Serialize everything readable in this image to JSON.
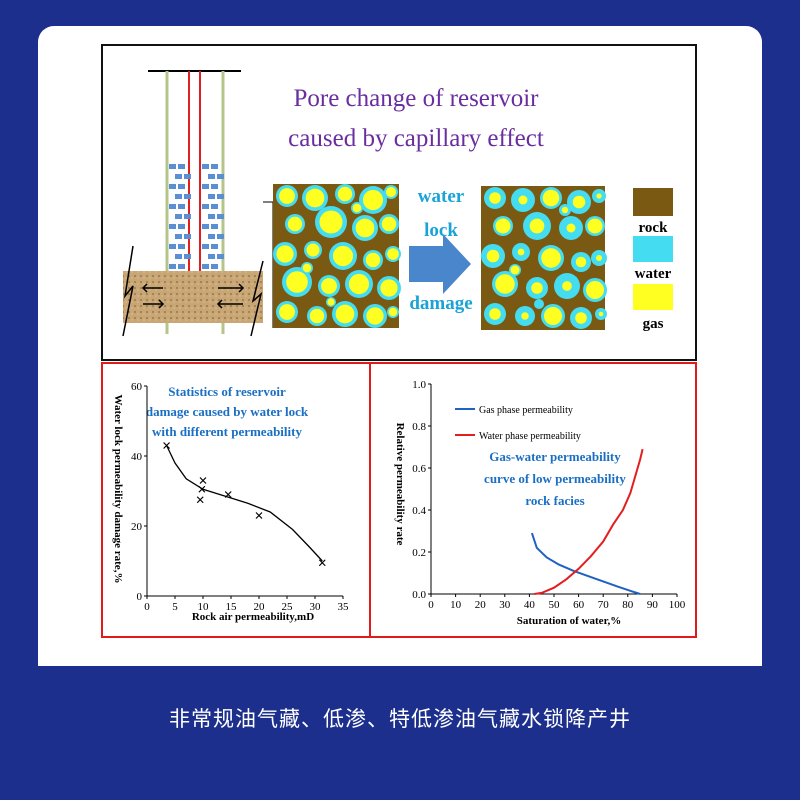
{
  "top": {
    "title_line1": "Pore change of reservoir",
    "title_line2": "caused by capillary effect",
    "arrow_label": [
      "water",
      "lock",
      "damage"
    ],
    "legend": [
      {
        "label": "rock",
        "color": "#7a5a12"
      },
      {
        "label": "water",
        "color": "#44dcf0"
      },
      {
        "label": "gas",
        "color": "#ffff22"
      }
    ]
  },
  "chart_data": [
    {
      "type": "scatter",
      "title": "Statistics of reservoir damage caused by water lock with different permeability",
      "title_lines": [
        "Statistics of reservoir",
        "damage caused by water lock",
        "with different permeability"
      ],
      "xlabel": "Rock air permeability,mD",
      "ylabel": "Water lock permeability damage rate,%",
      "xlim": [
        0,
        35
      ],
      "ylim": [
        0,
        60
      ],
      "xticks": [
        "0",
        "5",
        "10",
        "15",
        "20",
        "25",
        "30",
        "35"
      ],
      "yticks": [
        "0",
        "20",
        "40",
        "60"
      ],
      "points": [
        [
          3.5,
          43
        ],
        [
          9.5,
          27.5
        ],
        [
          9.8,
          30.5
        ],
        [
          10,
          33
        ],
        [
          14.5,
          29
        ],
        [
          20,
          23
        ],
        [
          31.3,
          9.5
        ]
      ],
      "trend": [
        [
          3.5,
          43
        ],
        [
          5,
          38
        ],
        [
          7,
          33.5
        ],
        [
          10,
          30.5
        ],
        [
          14,
          28.5
        ],
        [
          18,
          26.5
        ],
        [
          22,
          24
        ],
        [
          26,
          19
        ],
        [
          29,
          14
        ],
        [
          31.3,
          10
        ]
      ],
      "color": "#0070c0"
    },
    {
      "type": "line",
      "title": "Gas-water permeability curve of low permeability rock facies",
      "title_lines": [
        "Gas-water permeability",
        "curve of low permeability",
        "rock facies"
      ],
      "xlabel": "Saturation of water,%",
      "ylabel": "Relative permeability rate",
      "xlim": [
        0,
        100
      ],
      "ylim": [
        0,
        1.0
      ],
      "xticks": [
        "0",
        "10",
        "20",
        "30",
        "40",
        "50",
        "60",
        "70",
        "80",
        "90",
        "100"
      ],
      "yticks": [
        "0.0",
        "0.2",
        "0.4",
        "0.6",
        "0.8",
        "1.0"
      ],
      "series": [
        {
          "name": "Gas phase permeability",
          "color": "#1f62c0",
          "x": [
            41,
            43,
            47,
            52,
            58,
            64,
            70,
            76,
            81,
            85
          ],
          "y": [
            0.29,
            0.22,
            0.175,
            0.14,
            0.11,
            0.085,
            0.06,
            0.035,
            0.015,
            0.0
          ]
        },
        {
          "name": "Water phase permeability",
          "color": "#e41e1e",
          "x": [
            42,
            45,
            50,
            55,
            60,
            65,
            70,
            74,
            78,
            81,
            83,
            85,
            86
          ],
          "y": [
            0.0,
            0.005,
            0.03,
            0.07,
            0.12,
            0.18,
            0.25,
            0.33,
            0.4,
            0.48,
            0.56,
            0.64,
            0.69
          ]
        }
      ]
    }
  ],
  "footer": {
    "text": "非常规油气藏、低渗、特低渗油气藏水锁降产井"
  }
}
